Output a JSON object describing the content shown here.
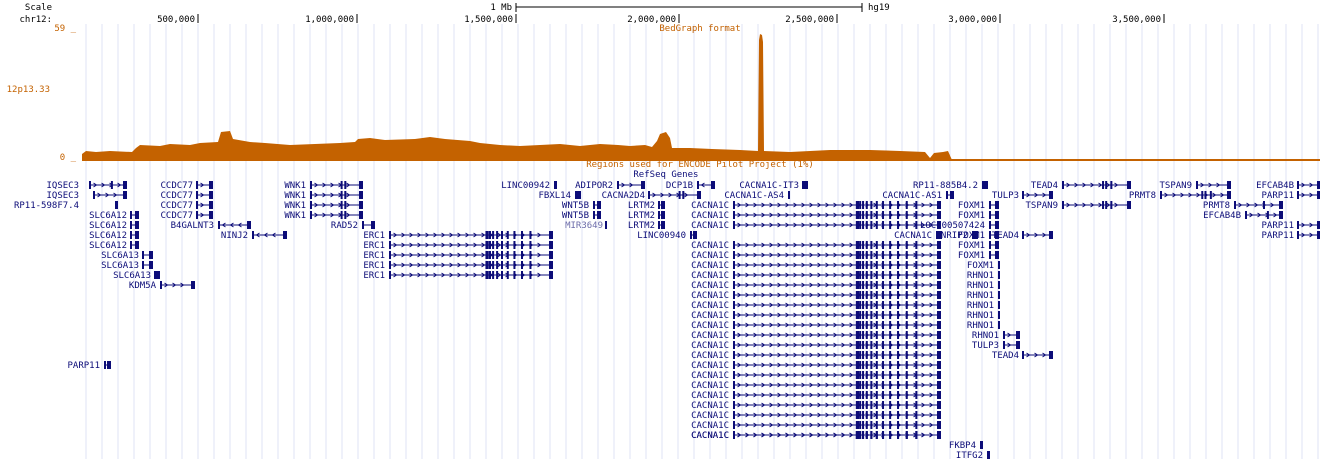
{
  "ruler": {
    "scale_label": "Scale",
    "chrom_label": "chr12:",
    "scale_bar_label": "1 Mb",
    "assembly": "hg19",
    "ticks": [
      "500,000",
      "1,000,000",
      "1,500,000",
      "2,000,000",
      "2,500,000",
      "3,000,000",
      "3,500,000"
    ]
  },
  "bedgraph": {
    "title": "BedGraph format",
    "max_label": "59 _",
    "min_label": "0 _",
    "side_label": "12p13.33",
    "color": "#c46200"
  },
  "encode": {
    "label": "Regions used for ENCODE Pilot Project (1%)"
  },
  "genes": {
    "track_title": "RefSeq Gene",
    "track_title_suffix": "s",
    "color": "#0c0c78",
    "items": [
      {
        "label": "IQSEC3"
      },
      {
        "label": "IQSEC3"
      },
      {
        "label": "RP11-598F7.4"
      },
      {
        "label": "SLC6A12"
      },
      {
        "label": "SLC6A12"
      },
      {
        "label": "SLC6A12"
      },
      {
        "label": "SLC6A12"
      },
      {
        "label": "SLC6A13"
      },
      {
        "label": "SLC6A13"
      },
      {
        "label": "SLC6A13"
      },
      {
        "label": "KDM5A"
      },
      {
        "label": "CCDC77"
      },
      {
        "label": "CCDC77"
      },
      {
        "label": "CCDC77"
      },
      {
        "label": "CCDC77"
      },
      {
        "label": "B4GALNT3"
      },
      {
        "label": "NINJ2"
      },
      {
        "label": "WNK1"
      },
      {
        "label": "WNK1"
      },
      {
        "label": "WNK1"
      },
      {
        "label": "WNK1"
      },
      {
        "label": "RAD52"
      },
      {
        "label": "ERC1"
      },
      {
        "label": "ERC1"
      },
      {
        "label": "ERC1"
      },
      {
        "label": "ERC1"
      },
      {
        "label": "ERC1"
      },
      {
        "label": "LINC00942"
      },
      {
        "label": "FBXL14"
      },
      {
        "label": "ADIPOR2"
      },
      {
        "label": "WNT5B"
      },
      {
        "label": "WNT5B"
      },
      {
        "label": "MIR3649"
      },
      {
        "label": "CACNA2D4"
      },
      {
        "label": "LRTM2"
      },
      {
        "label": "LRTM2"
      },
      {
        "label": "LRTM2"
      },
      {
        "label": "DCP1B"
      },
      {
        "label": "LINC00940"
      },
      {
        "label": "CACNA1C-IT3"
      },
      {
        "label": "CACNA1C-AS4"
      },
      {
        "label": "CACNA1C"
      },
      {
        "label": "CACNA1C"
      },
      {
        "label": "CACNA1C"
      },
      {
        "label": "CACNA1C"
      },
      {
        "label": "CACNA1C"
      },
      {
        "label": "CACNA1C"
      },
      {
        "label": "CACNA1C"
      },
      {
        "label": "CACNA1C"
      },
      {
        "label": "CACNA1C"
      },
      {
        "label": "CACNA1C"
      },
      {
        "label": "CACNA1C"
      },
      {
        "label": "CACNA1C"
      },
      {
        "label": "CACNA1C"
      },
      {
        "label": "CACNA1C"
      },
      {
        "label": "CACNA1C"
      },
      {
        "label": "CACNA1C"
      },
      {
        "label": "CACNA1C"
      },
      {
        "label": "CACNA1C"
      },
      {
        "label": "CACNA1C"
      },
      {
        "label": "CACNA1C"
      },
      {
        "label": "CACNA1C"
      },
      {
        "label": "CACNA1C"
      },
      {
        "label": "CACNA1C"
      },
      {
        "label": "CACNA1C"
      },
      {
        "label": "CACNA1C"
      },
      {
        "label": "CACNA1C-AS1"
      },
      {
        "label": "RP11-885B4.2"
      },
      {
        "label": "NRIP2"
      },
      {
        "label": "FKBP4"
      },
      {
        "label": "ITFG2"
      },
      {
        "label": "LOC100507424"
      },
      {
        "label": "FOXM1"
      },
      {
        "label": "FOXM1"
      },
      {
        "label": "FOXM1"
      },
      {
        "label": "FOXM1"
      },
      {
        "label": "FOXM1"
      },
      {
        "label": "FOXM1"
      },
      {
        "label": "RHNO1"
      },
      {
        "label": "RHNO1"
      },
      {
        "label": "RHNO1"
      },
      {
        "label": "RHNO1"
      },
      {
        "label": "RHNO1"
      },
      {
        "label": "RHNO1"
      },
      {
        "label": "RHNO1"
      },
      {
        "label": "TULP3"
      },
      {
        "label": "TULP3"
      },
      {
        "label": "TEAD4"
      },
      {
        "label": "TEAD4"
      },
      {
        "label": "TEAD4"
      },
      {
        "label": "TSPAN9"
      },
      {
        "label": "TSPAN9"
      },
      {
        "label": "PRMT8"
      },
      {
        "label": "PRMT8"
      },
      {
        "label": "EFCAB4B"
      },
      {
        "label": "EFCAB4B"
      },
      {
        "label": "PARP11"
      },
      {
        "label": "PARP11"
      },
      {
        "label": "PARP11"
      },
      {
        "label": "PARP11"
      }
    ]
  }
}
